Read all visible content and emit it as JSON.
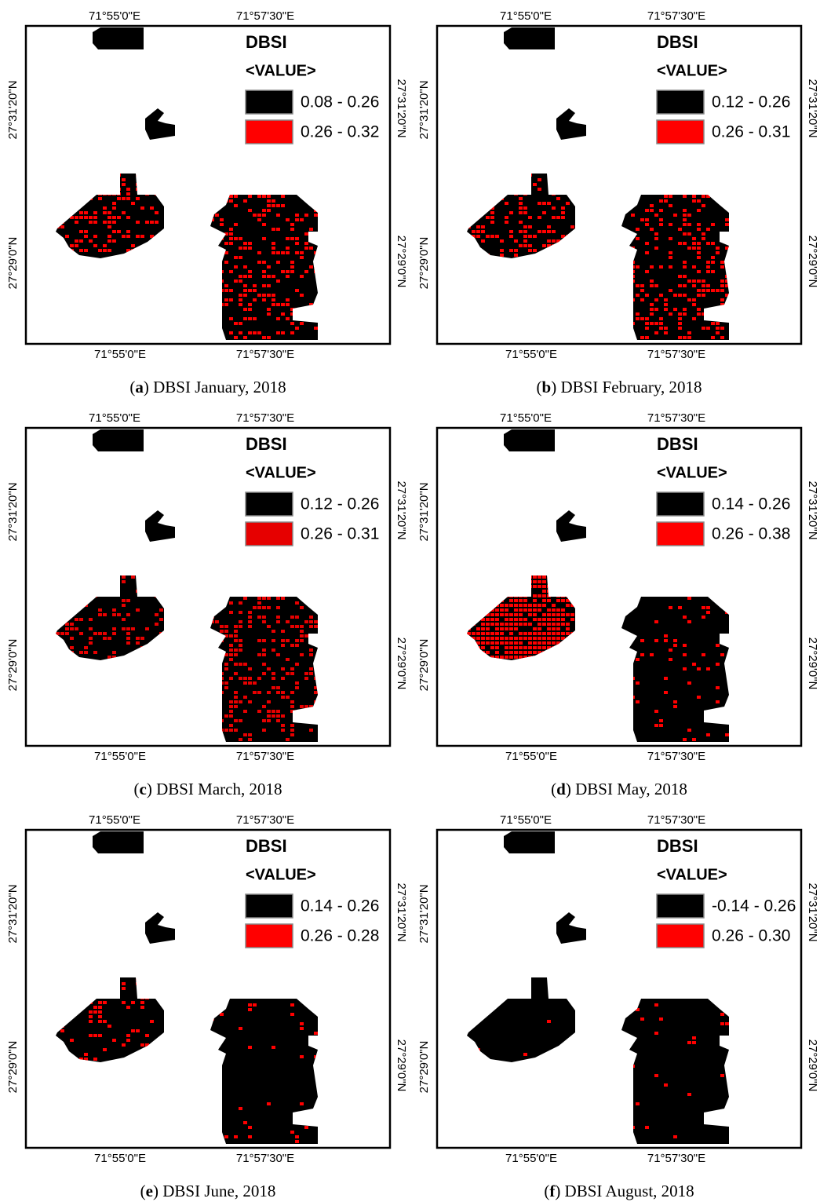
{
  "panels": [
    {
      "top_labels": [
        "71°55'0\"E",
        "71°57'30\"E"
      ],
      "bottom_labels": [
        "71°55'0\"E",
        "71°57'30\"E"
      ],
      "left_labels": [
        "27°31'20\"N",
        "27°29'0\"N"
      ],
      "right_labels": [
        "27°31'20\"N",
        "27°29'0\"N"
      ],
      "legend": {
        "title": "DBSI",
        "subtitle": "<VALUE>",
        "entries": [
          {
            "color": "#000000",
            "label": "0.08 - 0.26"
          },
          {
            "color": "#ff0000",
            "label": "0.26 - 0.32"
          }
        ]
      },
      "caption": [
        "(",
        "a",
        ") DBSI January, 2018"
      ]
    },
    {
      "top_labels": [
        "71°55'0\"E",
        "71°57'30\"E"
      ],
      "bottom_labels": [
        "71°55'0\"E",
        "71°57'30\"E"
      ],
      "left_labels": [
        "27°31'20\"N",
        "27°29'0\"N"
      ],
      "right_labels": [
        "27°31'20\"N",
        "27°29'0\"N"
      ],
      "legend": {
        "title": "DBSI",
        "subtitle": "<VALUE>",
        "entries": [
          {
            "color": "#000000",
            "label": "0.12 - 0.26"
          },
          {
            "color": "#ff0000",
            "label": "0.26 - 0.31"
          }
        ]
      },
      "caption": [
        "(",
        "b",
        ") DBSI February, 2018"
      ]
    },
    {
      "top_labels": [
        "71°55'0\"E",
        "71°57'30\"E"
      ],
      "bottom_labels": [
        "71°55'0\"E",
        "71°57'30\"E"
      ],
      "left_labels": [
        "27°31'20\"N",
        "27°29'0\"N"
      ],
      "right_labels": [
        "27°31'20\"N",
        "27°29'0\"N"
      ],
      "legend": {
        "title": "DBSI",
        "subtitle": "<VALUE>",
        "entries": [
          {
            "color": "#000000",
            "label": "0.12 - 0.26"
          },
          {
            "color": "#e60000",
            "label": "0.26 - 0.31"
          }
        ]
      },
      "caption": [
        "(",
        "c",
        ") DBSI March, 2018"
      ]
    },
    {
      "top_labels": [
        "71°55'0\"E",
        "71°57'30\"E"
      ],
      "bottom_labels": [
        "71°55'0\"E",
        "71°57'30\"E"
      ],
      "left_labels": [
        "27°31'20\"N",
        "27°29'0\"N"
      ],
      "right_labels": [
        "27°31'20\"N",
        "27°29'0\"N"
      ],
      "legend": {
        "title": "DBSI",
        "subtitle": "<VALUE>",
        "entries": [
          {
            "color": "#000000",
            "label": "0.14 - 0.26"
          },
          {
            "color": "#ff0000",
            "label": "0.26 - 0.38"
          }
        ]
      },
      "caption": [
        "(",
        "d",
        ") DBSI May, 2018"
      ]
    },
    {
      "top_labels": [
        "71°55'0\"E",
        "71°57'30\"E"
      ],
      "bottom_labels": [
        "71°55'0\"E",
        "71°57'30\"E"
      ],
      "left_labels": [
        "27°31'20\"N",
        "27°29'0\"N"
      ],
      "right_labels": [
        "27°31'20\"N",
        "27°29'0\"N"
      ],
      "legend": {
        "title": "DBSI",
        "subtitle": "<VALUE>",
        "entries": [
          {
            "color": "#000000",
            "label": "0.14 - 0.26"
          },
          {
            "color": "#ff0000",
            "label": "0.26 - 0.28"
          }
        ]
      },
      "caption": [
        "(",
        "e",
        ") DBSI June, 2018"
      ]
    },
    {
      "top_labels": [
        "71°55'0\"E",
        "71°57'30\"E"
      ],
      "bottom_labels": [
        "71°55'0\"E",
        "71°57'30\"E"
      ],
      "left_labels": [
        "27°31'20\"N",
        "27°29'0\"N"
      ],
      "right_labels": [
        "27°31'20\"N",
        "27°29'0\"N"
      ],
      "legend": {
        "title": "DBSI",
        "subtitle": "<VALUE>",
        "entries": [
          {
            "color": "#000000",
            "label": "-0.14 - 0.26"
          },
          {
            "color": "#ff0000",
            "label": "0.26 - 0.30"
          }
        ]
      },
      "caption": [
        "(",
        "f",
        ") DBSI August, 2018"
      ]
    }
  ]
}
